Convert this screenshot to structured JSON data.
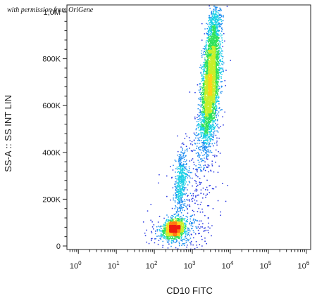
{
  "watermark": "with permission from OriGene",
  "chart_data": {
    "type": "scatter",
    "title": "",
    "xlabel": "CD10 FITC",
    "ylabel": "SS-A :: SS INT LIN",
    "x_scale": "log",
    "xlim": [
      0.5,
      1300000
    ],
    "ylim": [
      -15000,
      1030000
    ],
    "x_ticks": [
      {
        "value": 1,
        "base": "10",
        "exp": "0"
      },
      {
        "value": 10,
        "base": "10",
        "exp": "1"
      },
      {
        "value": 100,
        "base": "10",
        "exp": "2"
      },
      {
        "value": 1000,
        "base": "10",
        "exp": "3"
      },
      {
        "value": 10000,
        "base": "10",
        "exp": "4"
      },
      {
        "value": 100000,
        "base": "10",
        "exp": "5"
      },
      {
        "value": 1000000,
        "base": "10",
        "exp": "6"
      }
    ],
    "y_ticks": [
      {
        "value": 0,
        "label": "0"
      },
      {
        "value": 200000,
        "label": "200K"
      },
      {
        "value": 400000,
        "label": "400K"
      },
      {
        "value": 600000,
        "label": "600K"
      },
      {
        "value": 800000,
        "label": "800K"
      },
      {
        "value": 1000000,
        "label": "1,0M"
      }
    ],
    "populations": [
      {
        "cx": 320,
        "cy": 75000,
        "sx": 0.13,
        "sy": 18000,
        "count": 1400,
        "rot": 0.15
      },
      {
        "cx": 480,
        "cy": 280000,
        "sx": 0.08,
        "sy": 70000,
        "count": 450,
        "rot": 0.3
      },
      {
        "cx": 3000,
        "cy": 720000,
        "sx": 0.12,
        "sy": 85000,
        "count": 2100,
        "rot": 0.35
      },
      {
        "cx": 2600,
        "cy": 580000,
        "sx": 0.12,
        "sy": 70000,
        "count": 900,
        "rot": 0.35
      },
      {
        "cx": 3500,
        "cy": 900000,
        "sx": 0.1,
        "sy": 70000,
        "count": 700,
        "rot": 0.4
      },
      {
        "cx": 2200,
        "cy": 450000,
        "sx": 0.18,
        "sy": 80000,
        "count": 250,
        "rot": 0.2
      },
      {
        "cx": 900,
        "cy": 180000,
        "sx": 0.35,
        "sy": 120000,
        "count": 260,
        "rot": 0.1
      },
      {
        "cx": 350,
        "cy": 60000,
        "sx": 0.35,
        "sy": 40000,
        "count": 220,
        "rot": 0.0
      }
    ],
    "density_colors": [
      "#1f2fe0",
      "#1a8cf0",
      "#19d0e6",
      "#2ee25a",
      "#c8f02a",
      "#ffd21a",
      "#ff7a10",
      "#ee1c10"
    ]
  }
}
